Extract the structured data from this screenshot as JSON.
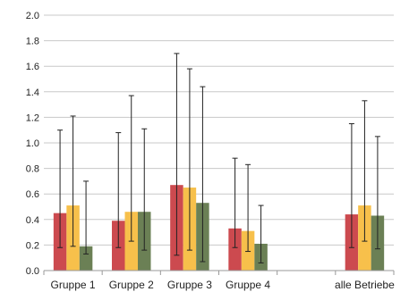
{
  "chart_data": {
    "type": "bar",
    "categories": [
      "Gruppe 1",
      "Gruppe 2",
      "Gruppe 3",
      "Gruppe 4",
      "",
      "alle Betriebe"
    ],
    "series": [
      {
        "color": "#cc4a4f",
        "values": [
          0.45,
          0.39,
          0.67,
          0.33,
          null,
          0.44
        ],
        "error_low": [
          0.18,
          0.18,
          0.12,
          0.18,
          null,
          0.18
        ],
        "error_high": [
          1.1,
          1.08,
          1.7,
          0.88,
          null,
          1.15
        ]
      },
      {
        "color": "#f7c04b",
        "values": [
          0.51,
          0.46,
          0.65,
          0.31,
          null,
          0.51
        ],
        "error_low": [
          0.19,
          0.23,
          0.16,
          0.15,
          null,
          0.23
        ],
        "error_high": [
          1.21,
          1.37,
          1.58,
          0.83,
          null,
          1.33
        ]
      },
      {
        "color": "#6b8055",
        "values": [
          0.19,
          0.46,
          0.53,
          0.21,
          null,
          0.43
        ],
        "error_low": [
          0.13,
          0.16,
          0.07,
          0.06,
          null,
          0.17
        ],
        "error_high": [
          0.7,
          1.11,
          1.44,
          0.51,
          null,
          1.05
        ]
      }
    ],
    "ylim": [
      0,
      2.0
    ],
    "yticks": [
      "0.0",
      "0.2",
      "0.4",
      "0.6",
      "0.8",
      "1.0",
      "1.2",
      "1.4",
      "1.6",
      "1.8",
      "2.0"
    ],
    "grid": true,
    "legend": "none"
  }
}
